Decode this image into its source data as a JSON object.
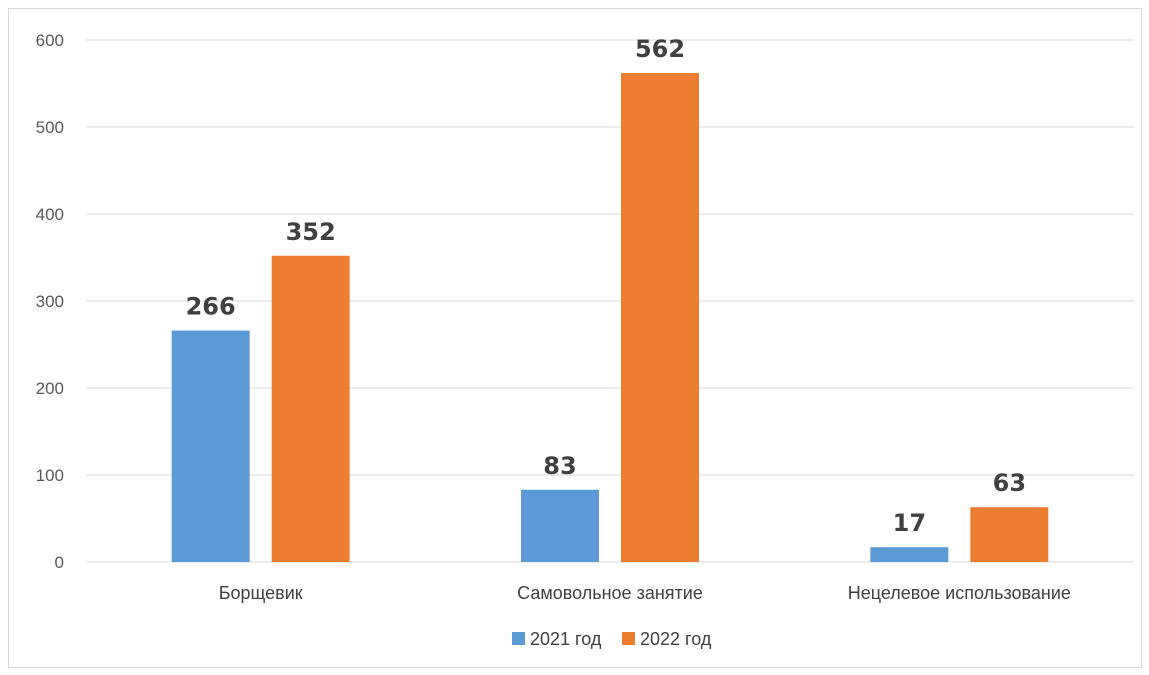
{
  "chart_data": {
    "type": "bar",
    "categories": [
      "Борщевик",
      "Самовольное занятие",
      "Нецелевое использование"
    ],
    "series": [
      {
        "name": "2021 год",
        "values": [
          266,
          83,
          17
        ],
        "color": "#5b9bd5"
      },
      {
        "name": "2022 год",
        "values": [
          352,
          562,
          63
        ],
        "color": "#ed7d31"
      }
    ],
    "yticks": [
      0,
      100,
      200,
      300,
      400,
      500,
      600
    ],
    "ylim": [
      0,
      600
    ],
    "grid": true,
    "data_labels": true,
    "legend_position": "bottom"
  }
}
